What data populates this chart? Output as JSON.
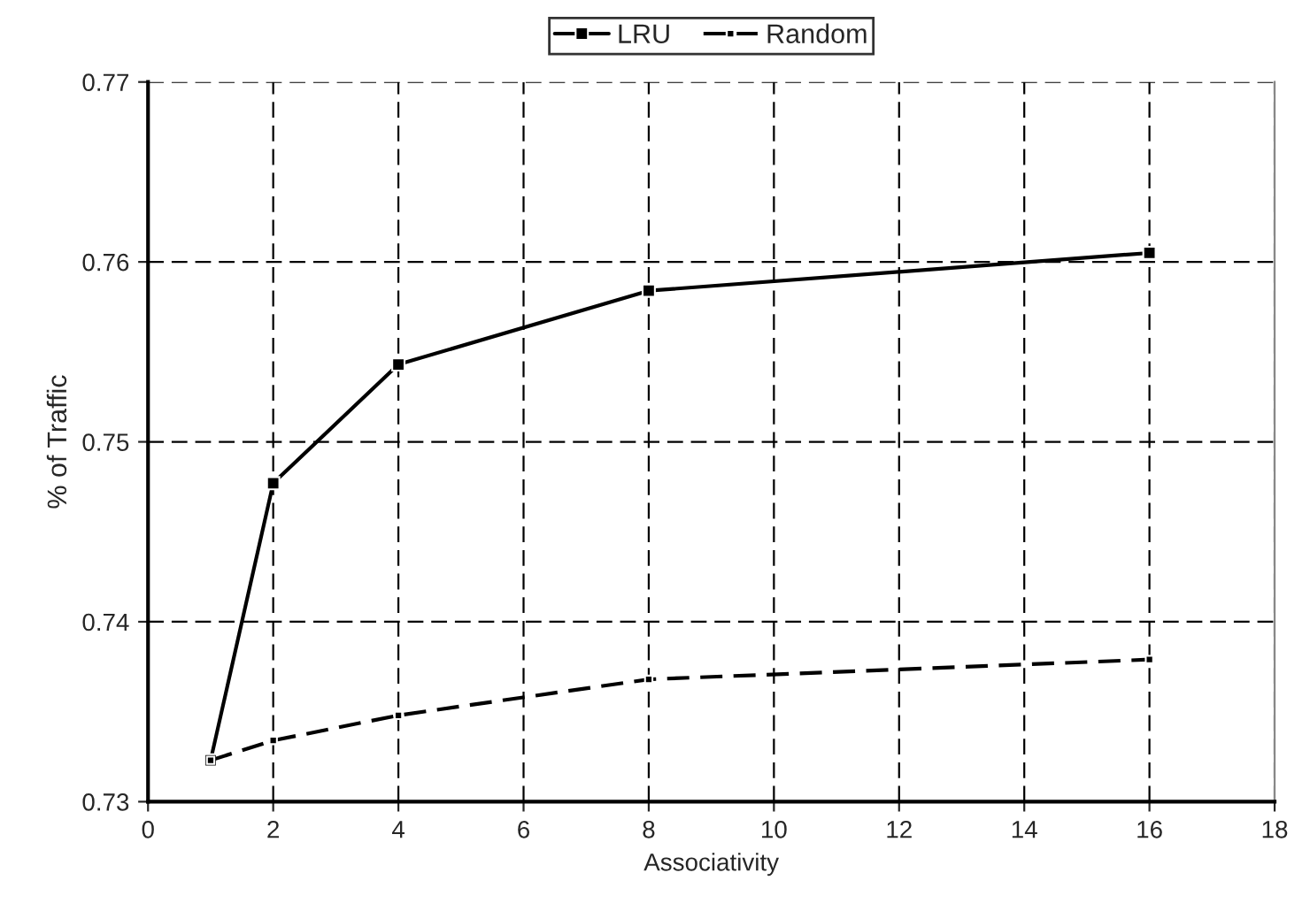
{
  "chart_data": {
    "type": "line",
    "xlabel": "Associativity",
    "ylabel": "% of Traffic",
    "x": [
      1,
      2,
      4,
      8,
      16
    ],
    "series": [
      {
        "name": "LRU",
        "color": "#000000",
        "line_style": "solid",
        "values": [
          0.7323,
          0.7477,
          0.7543,
          0.7584,
          0.7605
        ]
      },
      {
        "name": "Random",
        "color": "#000000",
        "line_style": "dashed",
        "values": [
          0.7323,
          0.7334,
          0.7348,
          0.7368,
          0.7379
        ]
      }
    ],
    "marker": "square",
    "xlim": [
      0,
      18
    ],
    "xticks": [
      0,
      2,
      4,
      6,
      8,
      10,
      12,
      14,
      16,
      18
    ],
    "ylim": [
      0.73,
      0.77
    ],
    "yticks": [
      0.73,
      0.74,
      0.75,
      0.76,
      0.77
    ],
    "grid": true,
    "legend": "top"
  }
}
